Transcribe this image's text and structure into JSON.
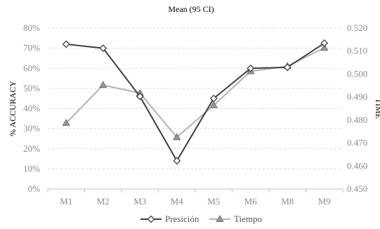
{
  "chart_data": {
    "type": "line",
    "title": "Mean (95 CI)",
    "categories": [
      "M1",
      "M2",
      "M3",
      "M4",
      "M5",
      "M6",
      "M8",
      "M9"
    ],
    "y_left": {
      "label": "% ACCURACY",
      "ticks": [
        "0%",
        "10%",
        "20%",
        "30%",
        "40%",
        "50%",
        "60%",
        "70%",
        "80%"
      ],
      "ylim": [
        0,
        0.8
      ]
    },
    "y_right": {
      "label": "TIME",
      "ticks": [
        "0.450",
        "0.460",
        "0.470",
        "0.480",
        "0.490",
        "0.500",
        "0.510",
        "0.520"
      ],
      "ylim": [
        0.45,
        0.52
      ]
    },
    "series": [
      {
        "name": "Presición",
        "axis": "left",
        "marker": "diamond",
        "color": "#404040",
        "values": [
          0.72,
          0.7,
          0.46,
          0.14,
          0.45,
          0.6,
          0.605,
          0.725
        ]
      },
      {
        "name": "Tiempo",
        "axis": "right",
        "marker": "triangle",
        "color": "#b3b3b3",
        "values": [
          0.4787,
          0.4952,
          0.4917,
          0.4725,
          0.4864,
          0.5012,
          0.5034,
          0.5114
        ]
      }
    ],
    "grid": true,
    "legend": "bottom"
  }
}
